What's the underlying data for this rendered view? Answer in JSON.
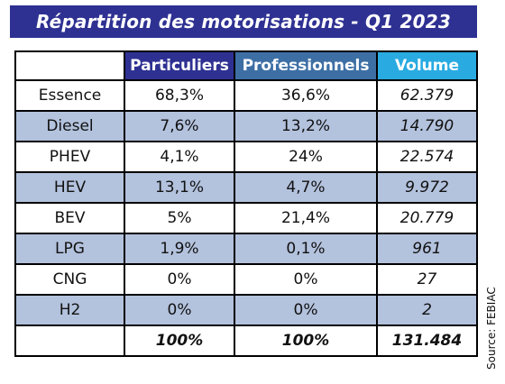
{
  "title": "Répartition des motorisations - Q1 2023",
  "source": "Source: FEBIAC",
  "colors": {
    "title_bg": "#2e3192",
    "particuliers_header": "#2e3192",
    "professionnels_header": "#3d6fa5",
    "volume_header": "#29abe2",
    "shaded_row": "#b3c2dd"
  },
  "chart_data": {
    "type": "table",
    "title": "Répartition des motorisations - Q1 2023",
    "columns": [
      "",
      "Particuliers",
      "Professionnels",
      "Volume"
    ],
    "rows": [
      {
        "label": "Essence",
        "particuliers": "68,3%",
        "professionnels": "36,6%",
        "volume": "62.379",
        "shaded": false
      },
      {
        "label": "Diesel",
        "particuliers": "7,6%",
        "professionnels": "13,2%",
        "volume": "14.790",
        "shaded": true
      },
      {
        "label": "PHEV",
        "particuliers": "4,1%",
        "professionnels": "24%",
        "volume": "22.574",
        "shaded": false
      },
      {
        "label": "HEV",
        "particuliers": "13,1%",
        "professionnels": "4,7%",
        "volume": "9.972",
        "shaded": true
      },
      {
        "label": "BEV",
        "particuliers": "5%",
        "professionnels": "21,4%",
        "volume": "20.779",
        "shaded": false
      },
      {
        "label": "LPG",
        "particuliers": "1,9%",
        "professionnels": "0,1%",
        "volume": "961",
        "shaded": true
      },
      {
        "label": "CNG",
        "particuliers": "0%",
        "professionnels": "0%",
        "volume": "27",
        "shaded": false
      },
      {
        "label": "H2",
        "particuliers": "0%",
        "professionnels": "0%",
        "volume": "2",
        "shaded": true
      }
    ],
    "total": {
      "label": "",
      "particuliers": "100%",
      "professionnels": "100%",
      "volume": "131.484"
    }
  }
}
